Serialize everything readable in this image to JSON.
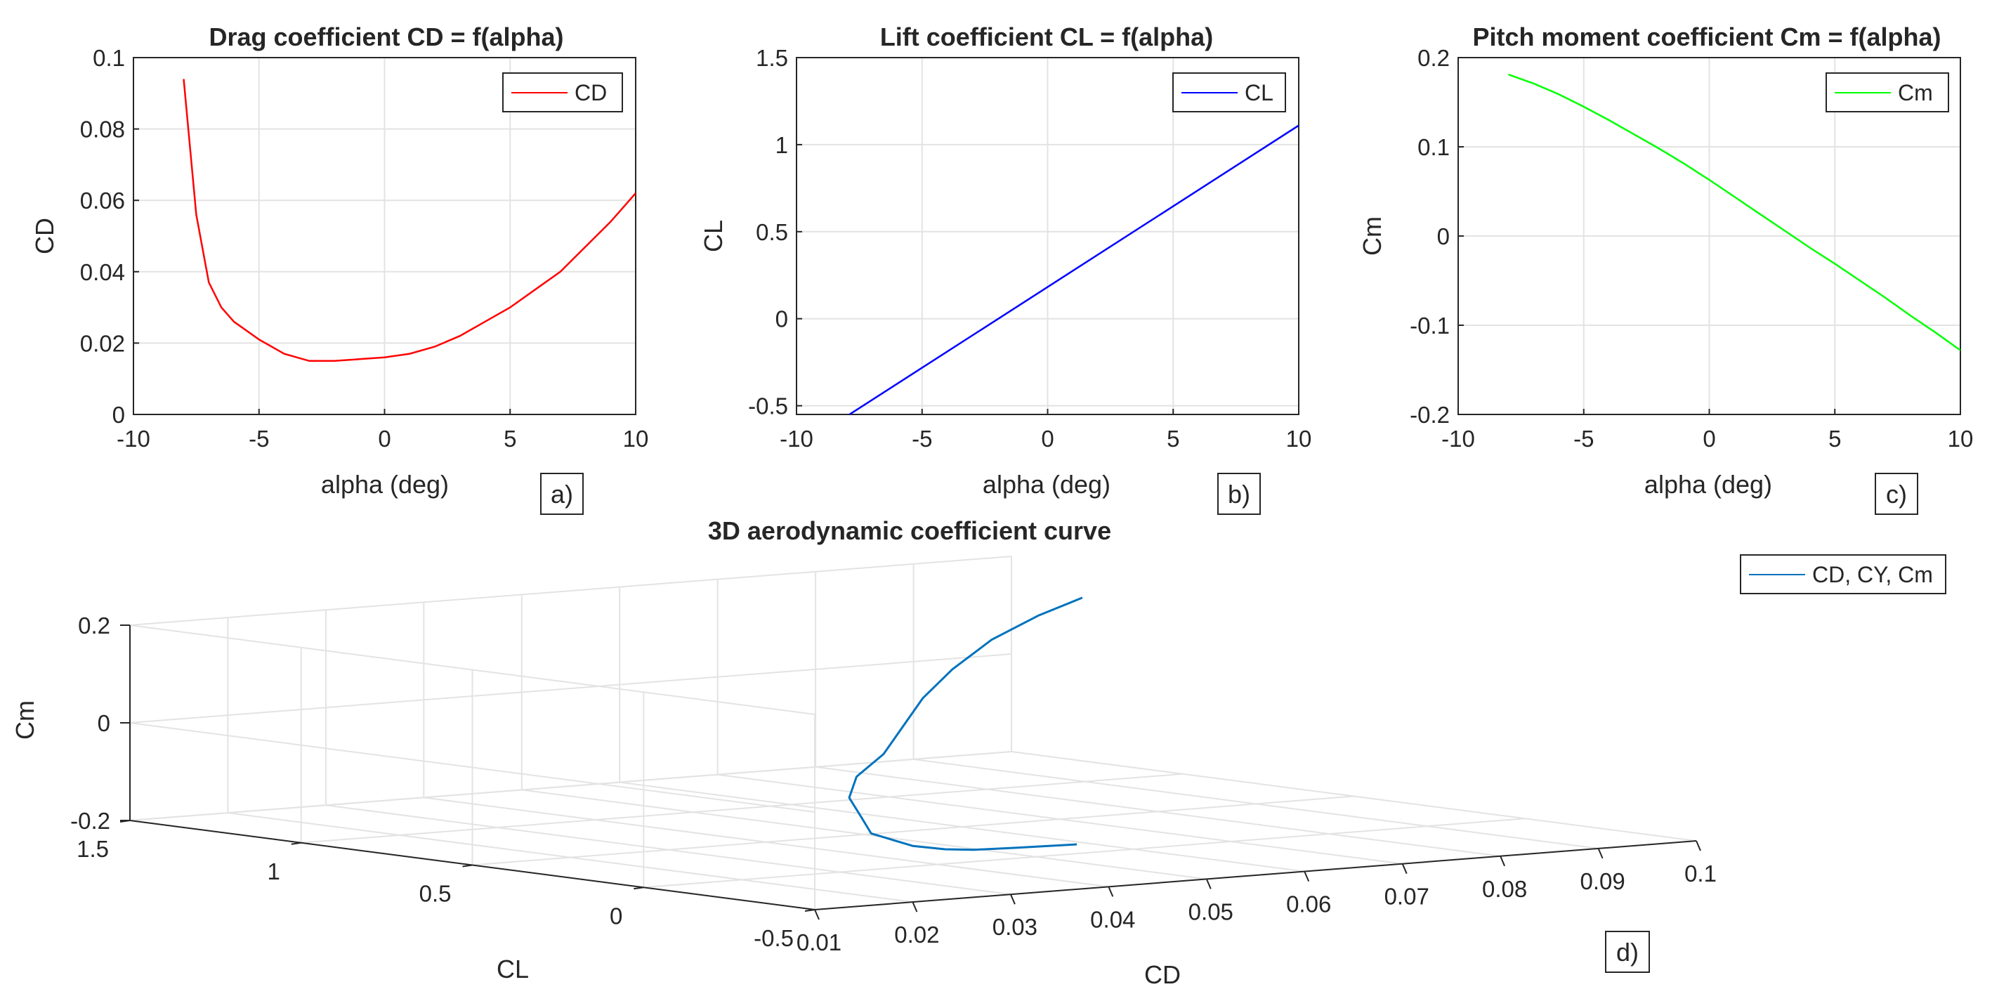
{
  "chart_data": [
    {
      "id": "a",
      "type": "line",
      "title": "Drag coefficient  CD = f(alpha)",
      "xlabel": "alpha (deg)",
      "ylabel": "CD",
      "xlim": [
        -10,
        10
      ],
      "ylim": [
        0,
        0.1
      ],
      "xticks": [
        -10,
        -5,
        0,
        5,
        10
      ],
      "xtick_labels": [
        "-10",
        "-5",
        "0",
        "5",
        "10"
      ],
      "yticks": [
        0,
        0.02,
        0.04,
        0.06,
        0.08,
        0.1
      ],
      "ytick_labels": [
        "0",
        "0.02",
        "0.04",
        "0.06",
        "0.08",
        "0.1"
      ],
      "grid": true,
      "legend": "top-right",
      "panel_label": "a)",
      "series": [
        {
          "name": "CD",
          "color": "#ff0000",
          "x": [
            -8,
            -7.5,
            -7,
            -6.5,
            -6,
            -5,
            -4,
            -3,
            -2,
            -1,
            0,
            1,
            2,
            3,
            4,
            5,
            6,
            7,
            8,
            9,
            10
          ],
          "y": [
            0.094,
            0.056,
            0.037,
            0.03,
            0.026,
            0.021,
            0.017,
            0.015,
            0.015,
            0.0155,
            0.016,
            0.017,
            0.019,
            0.022,
            0.026,
            0.03,
            0.035,
            0.04,
            0.047,
            0.054,
            0.062
          ]
        }
      ]
    },
    {
      "id": "b",
      "type": "line",
      "title": "Lift coefficient  CL = f(alpha)",
      "xlabel": "alpha (deg)",
      "ylabel": "CL",
      "xlim": [
        -10,
        10
      ],
      "ylim": [
        -0.55,
        1.5
      ],
      "xticks": [
        -10,
        -5,
        0,
        5,
        10
      ],
      "xtick_labels": [
        "-10",
        "-5",
        "0",
        "5",
        "10"
      ],
      "yticks": [
        -0.5,
        0,
        0.5,
        1,
        1.5
      ],
      "ytick_labels": [
        "-0.5",
        "0",
        "0.5",
        "1",
        "1.5"
      ],
      "grid": true,
      "legend": "top-right",
      "panel_label": "b)",
      "series": [
        {
          "name": "CL",
          "color": "#0000ff",
          "x": [
            -8,
            10
          ],
          "y": [
            -0.56,
            1.11
          ]
        }
      ]
    },
    {
      "id": "c",
      "type": "line",
      "title": "Pitch moment coefficient  Cm = f(alpha)",
      "xlabel": "alpha (deg)",
      "ylabel": "Cm",
      "xlim": [
        -10,
        10
      ],
      "ylim": [
        -0.2,
        0.2
      ],
      "xticks": [
        -10,
        -5,
        0,
        5,
        10
      ],
      "xtick_labels": [
        "-10",
        "-5",
        "0",
        "5",
        "10"
      ],
      "yticks": [
        -0.2,
        -0.1,
        0,
        0.1,
        0.2
      ],
      "ytick_labels": [
        "-0.2",
        "-0.1",
        "0",
        "0.1",
        "0.2"
      ],
      "grid": true,
      "legend": "top-right",
      "panel_label": "c)",
      "series": [
        {
          "name": "Cm",
          "color": "#00ff00",
          "x": [
            -8,
            -7,
            -6,
            -5,
            -4,
            -3,
            -2,
            -1,
            0,
            1,
            2,
            3,
            4,
            5,
            6,
            7,
            8,
            9,
            10
          ],
          "y": [
            0.181,
            0.171,
            0.159,
            0.145,
            0.13,
            0.114,
            0.098,
            0.081,
            0.063,
            0.044,
            0.025,
            0.006,
            -0.013,
            -0.031,
            -0.05,
            -0.069,
            -0.089,
            -0.108,
            -0.128
          ]
        }
      ]
    },
    {
      "id": "d",
      "type": "line",
      "projection": "3d",
      "title": "3D aerodynamic coefficient curve",
      "xlabel": "CD",
      "ylabel": "CL",
      "zlabel": "Cm",
      "xlim": [
        0.01,
        0.1
      ],
      "ylim": [
        -0.5,
        1.5
      ],
      "zlim": [
        -0.2,
        0.2
      ],
      "xticks": [
        0.01,
        0.02,
        0.03,
        0.04,
        0.05,
        0.06,
        0.07,
        0.08,
        0.09,
        0.1
      ],
      "xtick_labels": [
        "0.01",
        "0.02",
        "0.03",
        "0.04",
        "0.05",
        "0.06",
        "0.07",
        "0.08",
        "0.09",
        "0.1"
      ],
      "yticks": [
        -0.5,
        0,
        0.5,
        1,
        1.5
      ],
      "ytick_labels": [
        "-0.5",
        "0",
        "0.5",
        "1",
        "1.5"
      ],
      "zticks": [
        -0.2,
        0,
        0.2
      ],
      "ztick_labels": [
        "-0.2",
        "0",
        "0.2"
      ],
      "grid": true,
      "legend": "top-right",
      "panel_label": "d)",
      "series": [
        {
          "name": "CD, CY, Cm",
          "color": "#0072bd",
          "x": [
            0.042,
            0.034,
            0.028,
            0.024,
            0.02,
            0.018,
            0.0175,
            0.02,
            0.024,
            0.03,
            0.038,
            0.047,
            0.056,
            0.066,
            0.077,
            0.087,
            0.095
          ],
          "y": [
            -0.35,
            -0.4,
            -0.45,
            -0.48,
            -0.5,
            -0.5,
            -0.45,
            -0.35,
            -0.2,
            -0.05,
            0.1,
            0.3,
            0.5,
            0.7,
            0.9,
            1.05,
            1.15
          ],
          "z": [
            -0.13,
            -0.12,
            -0.11,
            -0.1,
            -0.085,
            -0.07,
            -0.06,
            -0.04,
            -0.02,
            0.0,
            0.02,
            0.045,
            0.07,
            0.095,
            0.12,
            0.14,
            0.155
          ]
        }
      ]
    }
  ]
}
